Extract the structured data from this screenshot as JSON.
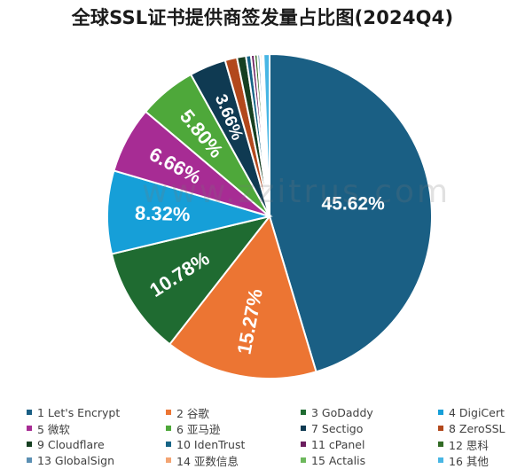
{
  "chart_data": {
    "type": "pie",
    "title": "全球SSL证书提供商签发量占比图(2024Q4)",
    "watermark": "www.zzitrus.com",
    "slices": [
      {
        "label": "1 Let's Encrypt",
        "value": 45.62,
        "color": "#1a5f84",
        "display": "45.62%"
      },
      {
        "label": "2 谷歌",
        "value": 15.27,
        "color": "#ec7533",
        "display": "15.27%"
      },
      {
        "label": "3 GoDaddy",
        "value": 10.78,
        "color": "#1f6b31",
        "display": "10.78%"
      },
      {
        "label": "4 DigiCert",
        "value": 8.32,
        "color": "#169fd8",
        "display": "8.32%"
      },
      {
        "label": "5 微软",
        "value": 6.66,
        "color": "#a72c94",
        "display": "6.66%"
      },
      {
        "label": "6 亚马逊",
        "value": 5.8,
        "color": "#4ea83a",
        "display": "5.80%"
      },
      {
        "label": "7 Sectigo",
        "value": 3.66,
        "color": "#0f3a52",
        "display": "3.66%"
      },
      {
        "label": "8 ZeroSSL",
        "value": 1.2,
        "color": "#b2481c",
        "display": ""
      },
      {
        "label": "9 Cloudflare",
        "value": 0.9,
        "color": "#163f21",
        "display": ""
      },
      {
        "label": "10 IdenTrust",
        "value": 0.5,
        "color": "#166486",
        "display": ""
      },
      {
        "label": "11 cPanel",
        "value": 0.35,
        "color": "#6b1d5e",
        "display": ""
      },
      {
        "label": "12 思科",
        "value": 0.3,
        "color": "#326b25",
        "display": ""
      },
      {
        "label": "13 GlobalSign",
        "value": 0.25,
        "color": "#5a8fb3",
        "display": ""
      },
      {
        "label": "14 亚数信息",
        "value": 0.2,
        "color": "#f3a472",
        "display": ""
      },
      {
        "label": "15 Actalis",
        "value": 0.15,
        "color": "#6db85c",
        "display": ""
      },
      {
        "label": "16 其他",
        "value": 0.6,
        "color": "#48b6e4",
        "display": ""
      }
    ]
  }
}
